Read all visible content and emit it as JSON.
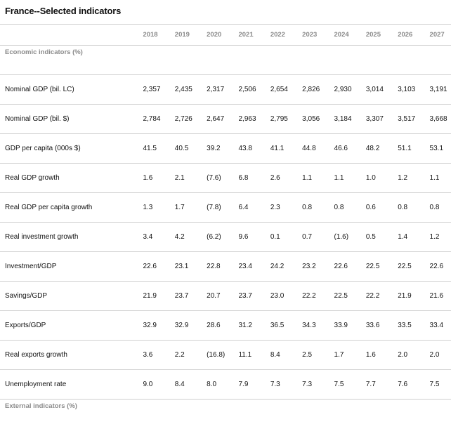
{
  "title": "France--Selected indicators",
  "years": [
    "2018",
    "2019",
    "2020",
    "2021",
    "2022",
    "2023",
    "2024",
    "2025",
    "2026",
    "2027"
  ],
  "sections": {
    "economic": "Economic indicators (%)",
    "external": "External indicators (%)"
  },
  "rows": [
    {
      "label": "Nominal GDP (bil. LC)",
      "values": [
        "2,357",
        "2,435",
        "2,317",
        "2,506",
        "2,654",
        "2,826",
        "2,930",
        "3,014",
        "3,103",
        "3,191"
      ]
    },
    {
      "label": "Nominal GDP (bil. $)",
      "values": [
        "2,784",
        "2,726",
        "2,647",
        "2,963",
        "2,795",
        "3,056",
        "3,184",
        "3,307",
        "3,517",
        "3,668"
      ]
    },
    {
      "label": "GDP per capita (000s $)",
      "values": [
        "41.5",
        "40.5",
        "39.2",
        "43.8",
        "41.1",
        "44.8",
        "46.6",
        "48.2",
        "51.1",
        "53.1"
      ]
    },
    {
      "label": "Real GDP growth",
      "values": [
        "1.6",
        "2.1",
        "(7.6)",
        "6.8",
        "2.6",
        "1.1",
        "1.1",
        "1.0",
        "1.2",
        "1.1"
      ]
    },
    {
      "label": "Real GDP per capita growth",
      "values": [
        "1.3",
        "1.7",
        "(7.8)",
        "6.4",
        "2.3",
        "0.8",
        "0.8",
        "0.6",
        "0.8",
        "0.8"
      ]
    },
    {
      "label": "Real investment growth",
      "values": [
        "3.4",
        "4.2",
        "(6.2)",
        "9.6",
        "0.1",
        "0.7",
        "(1.6)",
        "0.5",
        "1.4",
        "1.2"
      ]
    },
    {
      "label": "Investment/GDP",
      "values": [
        "22.6",
        "23.1",
        "22.8",
        "23.4",
        "24.2",
        "23.2",
        "22.6",
        "22.5",
        "22.5",
        "22.6"
      ]
    },
    {
      "label": "Savings/GDP",
      "values": [
        "21.9",
        "23.7",
        "20.7",
        "23.7",
        "23.0",
        "22.2",
        "22.5",
        "22.2",
        "21.9",
        "21.6"
      ]
    },
    {
      "label": "Exports/GDP",
      "values": [
        "32.9",
        "32.9",
        "28.6",
        "31.2",
        "36.5",
        "34.3",
        "33.9",
        "33.6",
        "33.5",
        "33.4"
      ]
    },
    {
      "label": "Real exports growth",
      "values": [
        "3.6",
        "2.2",
        "(16.8)",
        "11.1",
        "8.4",
        "2.5",
        "1.7",
        "1.6",
        "2.0",
        "2.0"
      ]
    },
    {
      "label": "Unemployment rate",
      "values": [
        "9.0",
        "8.4",
        "8.0",
        "7.9",
        "7.3",
        "7.3",
        "7.5",
        "7.7",
        "7.6",
        "7.5"
      ]
    }
  ]
}
